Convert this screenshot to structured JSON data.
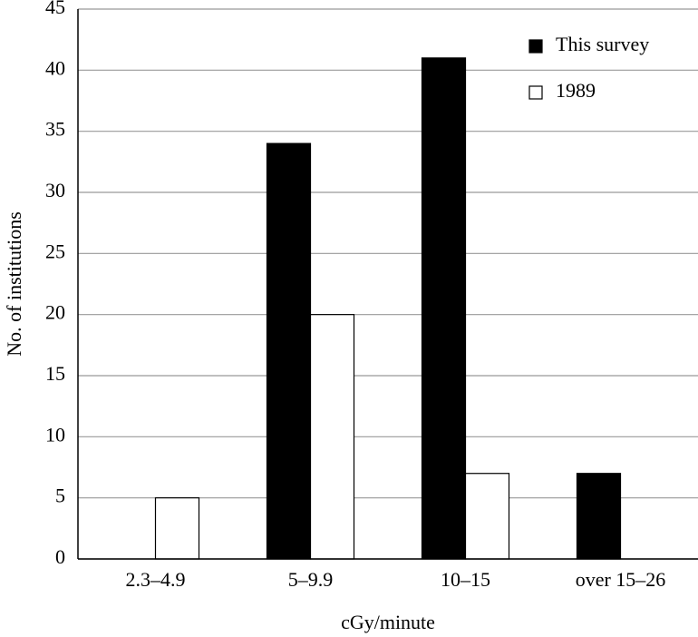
{
  "chart_data": {
    "type": "bar",
    "categories": [
      "2.3–4.9",
      "5–9.9",
      "10–15",
      "over 15–26"
    ],
    "series": [
      {
        "name": "This survey",
        "color": "#000000",
        "values": [
          0,
          34,
          41,
          7
        ]
      },
      {
        "name": "1989",
        "color": "#ffffff",
        "values": [
          5,
          20,
          7,
          0
        ]
      }
    ],
    "x_label": "cGy/minute",
    "y_label": "No. of institutions",
    "ylim": [
      0,
      45
    ],
    "yticks": [
      0,
      5,
      10,
      15,
      20,
      25,
      30,
      35,
      40,
      45
    ],
    "grid": true,
    "legend": "upper-right"
  }
}
